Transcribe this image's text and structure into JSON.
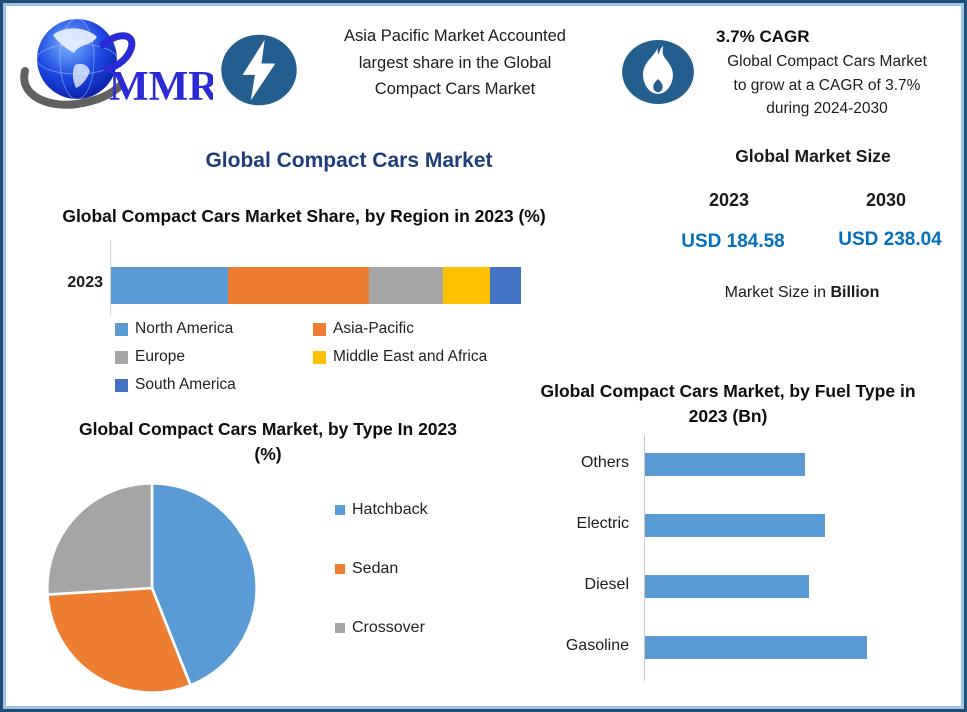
{
  "brand": {
    "logo_text": "MMR"
  },
  "header": {
    "banner1": {
      "text": "Asia Pacific Market Accounted\nlargest share in the Global\nCompact Cars Market"
    },
    "cagr": {
      "title": "3.7% CAGR",
      "body": "Global Compact Cars Market\nto grow at a CAGR of 3.7%\nduring 2024-2030"
    }
  },
  "main_title": "Global Compact Cars Market",
  "market_size": {
    "title": "Global Market Size",
    "year_left": "2023",
    "year_right": "2030",
    "value_left": "USD 184.58",
    "value_right": "USD 238.04",
    "note_prefix": "Market Size in ",
    "note_bold": "Billion"
  },
  "colors": {
    "accent_navy": "#1f3d7a",
    "value_blue": "#0070c0",
    "icon_circle": "#235e8e",
    "border_outer": "#1f4e79",
    "border_inner": "#9dc3e6",
    "bar_blue": "#5b9bd5"
  },
  "icons": [
    "globe-logo-icon",
    "lightning-icon",
    "flame-icon"
  ],
  "chart_data": [
    {
      "type": "bar",
      "variant": "stacked-horizontal",
      "title": "Global Compact Cars Market Share, by Region in 2023 (%)",
      "categories": [
        "2023"
      ],
      "series": [
        {
          "name": "North America",
          "values": [
            28.5
          ],
          "color": "#5b9bd5"
        },
        {
          "name": "Asia-Pacific",
          "values": [
            34.5
          ],
          "color": "#ed7d31"
        },
        {
          "name": "Europe",
          "values": [
            18
          ],
          "color": "#a5a5a5"
        },
        {
          "name": "Middle East and Africa",
          "values": [
            11.5
          ],
          "color": "#ffc000"
        },
        {
          "name": "South America",
          "values": [
            7.5
          ],
          "color": "#4472c4"
        }
      ],
      "xlim": [
        0,
        100
      ],
      "legend_position": "bottom",
      "values_estimated_from_pixels": true
    },
    {
      "type": "pie",
      "title": "Global Compact Cars Market, by Type In 2023 (%)",
      "labels": [
        "Hatchback",
        "Sedan",
        "Crossover"
      ],
      "values": [
        44,
        30,
        26
      ],
      "colors": [
        "#5b9bd5",
        "#ed7d31",
        "#a5a5a5"
      ],
      "legend_position": "right",
      "start_angle_deg": 0,
      "values_estimated_from_pixels": true
    },
    {
      "type": "bar",
      "variant": "horizontal",
      "title": "Global Compact Cars Market, by Fuel Type in 2023 (Bn)",
      "categories": [
        "Others",
        "Electric",
        "Diesel",
        "Gasoline"
      ],
      "values": [
        72,
        81,
        74,
        100
      ],
      "color": "#5b9bd5",
      "axis_value_labels_hidden": true,
      "values_estimated_relative": true
    }
  ]
}
